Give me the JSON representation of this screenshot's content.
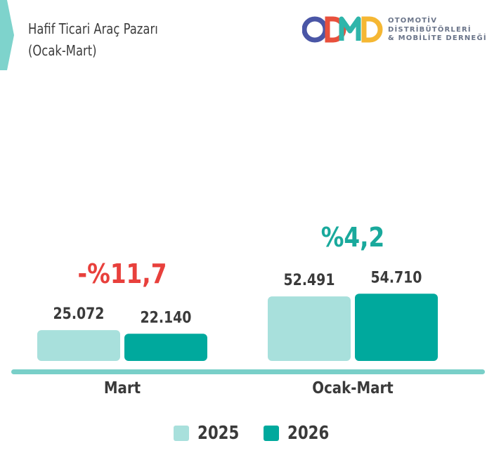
{
  "header": {
    "title_line1": "Hafif Ticari Araç Pazarı",
    "title_line2": "(Ocak-Mart)"
  },
  "logo": {
    "mark": "ODMD",
    "line1": "OTOMOTİV",
    "line2": "DİSTRİBÜTÖRLERİ",
    "line3": "& MOBİLİTE DERNEĞİ"
  },
  "colors": {
    "series_2025": "#a8e0dc",
    "series_2026": "#00a99d",
    "baseline": "#79cfc8",
    "change_negative": "#e8403c",
    "change_positive": "#19a99c",
    "value_text": "#3a3a3a"
  },
  "chart_data": {
    "type": "bar",
    "categories": [
      "Mart",
      "Ocak-Mart"
    ],
    "series": [
      {
        "name": "2025",
        "values": [
          25072,
          52491
        ],
        "labels": [
          "25.072",
          "52.491"
        ]
      },
      {
        "name": "2026",
        "values": [
          22140,
          54710
        ],
        "labels": [
          "22.140",
          "54.710"
        ]
      }
    ],
    "changes": [
      "-%11,7",
      "%4,2"
    ],
    "change_direction": [
      "negative",
      "positive"
    ],
    "legend_position": "bottom-center",
    "grid": false
  }
}
